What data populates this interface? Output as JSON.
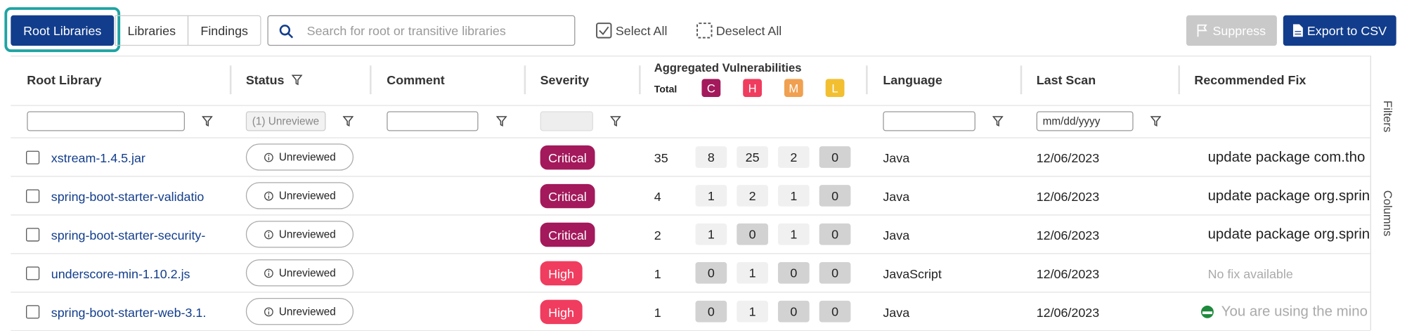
{
  "toolbar": {
    "tabs": [
      "Root Libraries",
      "Libraries",
      "Findings"
    ],
    "search_placeholder": "Search for root or transitive libraries",
    "select_all": "Select All",
    "deselect_all": "Deselect All",
    "suppress": "Suppress",
    "export": "Export to CSV"
  },
  "table": {
    "columns": [
      "Root Library",
      "Status",
      "Comment",
      "Severity",
      "Aggregated Vulnerabilities",
      "Language",
      "Last Scan",
      "Recommended Fix"
    ],
    "vuln_headers": {
      "total": "Total",
      "c": "C",
      "h": "H",
      "m": "M",
      "l": "L"
    },
    "filters": {
      "status": "(1) Unreviewe",
      "date": "mm/dd/yyyy"
    },
    "rows": [
      [
        "xstream-1.4.5.jar",
        "Unreviewed",
        "Critical",
        35,
        8,
        25,
        2,
        0,
        "Java",
        "12/06/2023",
        "update package com.tho"
      ],
      [
        "spring-boot-starter-validatio",
        "Unreviewed",
        "Critical",
        4,
        1,
        2,
        1,
        0,
        "Java",
        "12/06/2023",
        "update package org.sprin"
      ],
      [
        "spring-boot-starter-security-",
        "Unreviewed",
        "Critical",
        2,
        1,
        0,
        1,
        0,
        "Java",
        "12/06/2023",
        "update package org.sprin"
      ],
      [
        "underscore-min-1.10.2.js",
        "Unreviewed",
        "High",
        1,
        0,
        1,
        0,
        0,
        "JavaScript",
        "12/06/2023",
        "No fix available"
      ],
      [
        "spring-boot-starter-web-3.1.",
        "Unreviewed",
        "High",
        1,
        0,
        1,
        0,
        0,
        "Java",
        "12/06/2023",
        "You are using the mino"
      ]
    ]
  },
  "side_panel": [
    "Filters",
    "Columns"
  ]
}
